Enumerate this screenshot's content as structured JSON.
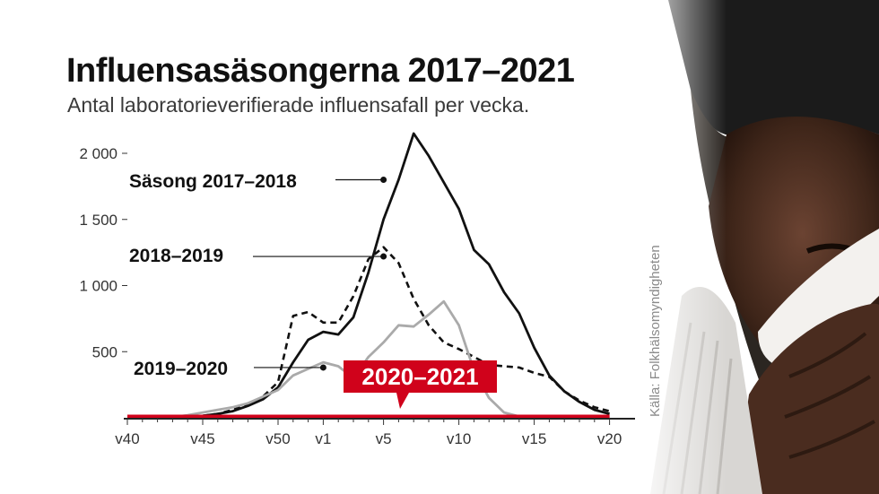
{
  "header": {
    "title": "Influensasäsongerna 2017–2021",
    "subtitle": "Antal laboratorieverifierade influensafall per vecka."
  },
  "source": "Källa: Folkhälsomyndigheten",
  "colors": {
    "s2017_2018": "#111111",
    "s2018_2019": "#111111",
    "s2019_2020": "#aaaaaa",
    "s2020_2021": "#d0021b"
  },
  "chart_data": {
    "type": "line",
    "title": "Influensasäsongerna 2017–2021",
    "subtitle": "Antal laboratorieverifierade influensafall per vecka.",
    "x_tick_labels": [
      "v40",
      "v45",
      "v50",
      "v1",
      "v5",
      "v10",
      "v15",
      "v20"
    ],
    "x": [
      "v40",
      "v41",
      "v42",
      "v43",
      "v44",
      "v45",
      "v46",
      "v47",
      "v48",
      "v49",
      "v50",
      "v51",
      "v52",
      "v1",
      "v2",
      "v3",
      "v4",
      "v5",
      "v6",
      "v7",
      "v8",
      "v9",
      "v10",
      "v11",
      "v12",
      "v13",
      "v14",
      "v15",
      "v16",
      "v17",
      "v18",
      "v19",
      "v20"
    ],
    "ylim": [
      0,
      2150
    ],
    "y_ticks": [
      {
        "value": 500,
        "label": "500"
      },
      {
        "value": 1000,
        "label": "1 000"
      },
      {
        "value": 1500,
        "label": "1 500"
      },
      {
        "value": 2000,
        "label": "2 000"
      }
    ],
    "grid": false,
    "series": [
      {
        "key": "s2017_2018",
        "name": "Säsong 2017–2018",
        "style": "solid",
        "values": [
          5,
          5,
          5,
          5,
          10,
          15,
          30,
          50,
          90,
          140,
          230,
          420,
          590,
          650,
          630,
          760,
          1100,
          1500,
          1800,
          2150,
          1980,
          1780,
          1580,
          1270,
          1160,
          950,
          790,
          530,
          320,
          200,
          120,
          60,
          30
        ],
        "label_at": "v5",
        "marker_value": 1800
      },
      {
        "key": "s2018_2019",
        "name": "2018–2019",
        "style": "dashed",
        "values": [
          5,
          5,
          5,
          5,
          10,
          15,
          30,
          60,
          100,
          160,
          270,
          770,
          800,
          720,
          720,
          920,
          1200,
          1290,
          1170,
          900,
          700,
          570,
          520,
          460,
          400,
          390,
          380,
          340,
          310,
          200,
          130,
          80,
          50
        ],
        "label_at": "v5",
        "marker_value": 1220
      },
      {
        "key": "s2019_2020",
        "name": "2019–2020",
        "style": "solid",
        "values": [
          5,
          5,
          5,
          5,
          20,
          40,
          60,
          80,
          110,
          160,
          210,
          320,
          370,
          420,
          390,
          300,
          460,
          570,
          700,
          690,
          780,
          880,
          700,
          360,
          150,
          40,
          10,
          5,
          5,
          5,
          5,
          5,
          5
        ],
        "label_at": "v1",
        "marker_value": 380
      },
      {
        "key": "s2020_2021",
        "name": "2020–2021",
        "style": "solid",
        "values": [
          10,
          10,
          10,
          10,
          10,
          10,
          10,
          10,
          10,
          10,
          10,
          10,
          10,
          10,
          10,
          10,
          10,
          10,
          10,
          10,
          10,
          10,
          10,
          10,
          10,
          10,
          10,
          10,
          10,
          10,
          10,
          10,
          10
        ],
        "label_at": "v5",
        "highlight": true
      }
    ]
  }
}
